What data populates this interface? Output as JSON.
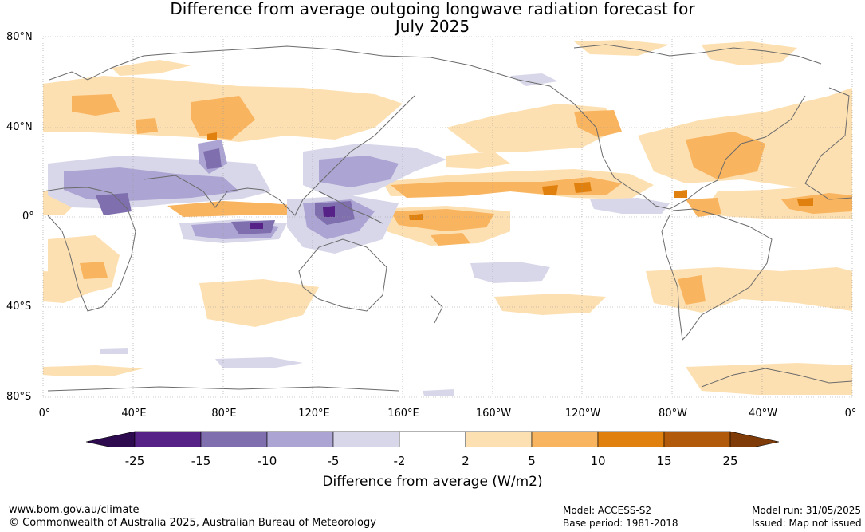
{
  "title_line1": "Difference from average outgoing longwave radiation forecast for",
  "title_line2": "July 2025",
  "lat_labels": [
    "80°N",
    "40°N",
    "0°",
    "40°S",
    "80°S"
  ],
  "lon_labels": [
    "0°",
    "40°E",
    "80°E",
    "120°E",
    "160°E",
    "160°W",
    "120°W",
    "80°W",
    "40°W",
    "0°"
  ],
  "colorbar": {
    "ticks": [
      "-25",
      "-15",
      "-10",
      "-5",
      "-2",
      "2",
      "5",
      "10",
      "15",
      "25"
    ],
    "colors": [
      "#2e0a4f",
      "#572288",
      "#7f6fae",
      "#aca4d2",
      "#d8d7ea",
      "#ffffff",
      "#fde0b2",
      "#f9b45f",
      "#e0810f",
      "#b25a0c",
      "#7f3b08"
    ],
    "label": "Difference from average (W/m2)"
  },
  "footer": {
    "website": "www.bom.gov.au/climate",
    "copyright": "© Commonwealth of Australia 2025, Australian Bureau of Meteorology",
    "model": "Model: ACCESS-S2",
    "base_period": "Base period: 1981-2018",
    "model_run": "Model run: 31/05/2025",
    "issued": "Issued: Map not issued"
  }
}
